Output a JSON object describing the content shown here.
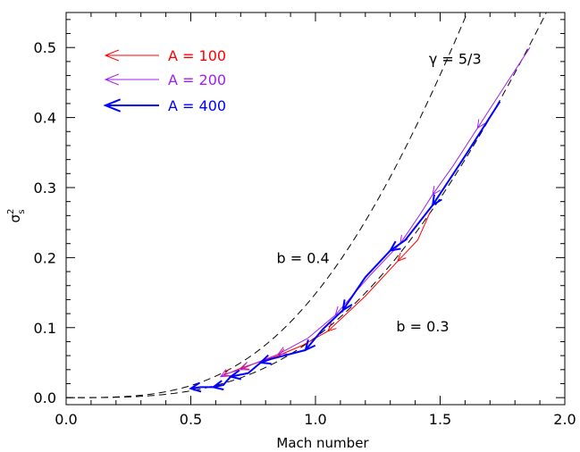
{
  "chart_data": {
    "type": "line",
    "xlabel": "Mach number",
    "ylabel": "σ",
    "ylabel_superscript": "2",
    "ylabel_subscript": "s",
    "xlim": [
      0.0,
      2.0
    ],
    "ylim": [
      -0.01,
      0.55
    ],
    "xticks": [
      {
        "value": 0.0,
        "label": "0.0"
      },
      {
        "value": 0.5,
        "label": "0.5"
      },
      {
        "value": 1.0,
        "label": "1.0"
      },
      {
        "value": 1.5,
        "label": "1.5"
      },
      {
        "value": 2.0,
        "label": "2.0"
      }
    ],
    "yticks": [
      {
        "value": 0.0,
        "label": "0.0"
      },
      {
        "value": 0.1,
        "label": "0.1"
      },
      {
        "value": 0.2,
        "label": "0.2"
      },
      {
        "value": 0.3,
        "label": "0.3"
      },
      {
        "value": 0.4,
        "label": "0.4"
      },
      {
        "value": 0.5,
        "label": "0.5"
      }
    ],
    "grid": false,
    "legend_position": "top-left",
    "series": [
      {
        "name": "A = 100",
        "color": "#ff0000",
        "width": 1,
        "x": [
          1.46,
          1.41,
          1.33,
          1.2,
          1.05,
          0.95,
          0.85,
          0.75,
          0.7,
          0.66,
          0.63
        ],
        "y": [
          0.265,
          0.225,
          0.195,
          0.145,
          0.095,
          0.075,
          0.06,
          0.048,
          0.042,
          0.036,
          0.032
        ]
      },
      {
        "name": "A = 200",
        "color": "#a020f0",
        "width": 1,
        "x": [
          1.86,
          1.75,
          1.65,
          1.55,
          1.47,
          1.42,
          1.34,
          1.22,
          1.08,
          0.97,
          0.85,
          0.75,
          0.7,
          0.64,
          0.62
        ],
        "y": [
          0.5,
          0.44,
          0.385,
          0.33,
          0.29,
          0.262,
          0.22,
          0.175,
          0.118,
          0.085,
          0.062,
          0.048,
          0.04,
          0.034,
          0.03
        ]
      },
      {
        "name": "A = 400",
        "color": "#0000ff",
        "width": 2,
        "x": [
          1.74,
          1.6,
          1.47,
          1.36,
          1.3,
          1.2,
          1.11,
          1.03,
          0.96,
          0.82,
          0.78,
          0.73,
          0.66,
          0.63,
          0.59,
          0.54,
          0.5
        ],
        "y": [
          0.423,
          0.345,
          0.275,
          0.225,
          0.21,
          0.172,
          0.125,
          0.098,
          0.068,
          0.055,
          0.05,
          0.035,
          0.03,
          0.018,
          0.015,
          0.015,
          0.013
        ]
      }
    ],
    "curves": [
      {
        "label": "b = 0.4",
        "b": 0.4,
        "gamma": 1.6667
      },
      {
        "label": "b = 0.3",
        "b": 0.3,
        "gamma": 1.6667
      }
    ],
    "annotations": [
      {
        "text": "γ = 5/3",
        "x": 1.56,
        "y": 0.484
      },
      {
        "text": "b = 0.4",
        "x": 0.95,
        "y": 0.2
      },
      {
        "text": "b = 0.3",
        "x": 1.43,
        "y": 0.102
      }
    ]
  }
}
